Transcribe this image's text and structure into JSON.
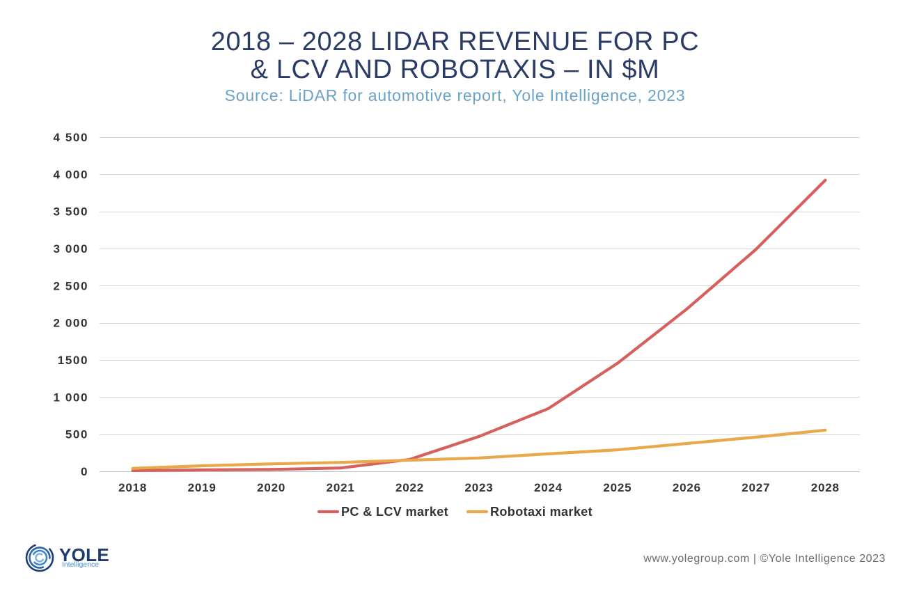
{
  "chart_data": {
    "type": "line",
    "title_lines": [
      "2018 – 2028 LIDAR REVENUE FOR PC",
      "& LCV AND ROBOTAXIS – IN $M"
    ],
    "subtitle": "Source: LiDAR for automotive report, Yole Intelligence, 2023",
    "xlabel": "",
    "ylabel": "",
    "categories": [
      "2018",
      "2019",
      "2020",
      "2021",
      "2022",
      "2023",
      "2024",
      "2025",
      "2026",
      "2027",
      "2028"
    ],
    "ylim": [
      0,
      4500
    ],
    "y_ticks": [
      0,
      500,
      1000,
      1500,
      2000,
      2500,
      3000,
      3500,
      4000,
      4500
    ],
    "y_tick_labels": [
      "0",
      "500",
      "1 000",
      "1500",
      "2 000",
      "2 500",
      "3 000",
      "3 500",
      "4 000",
      "4 500"
    ],
    "grid": true,
    "legend": "bottom",
    "series": [
      {
        "name": "PC & LCV market",
        "color": "#d6605b",
        "values": [
          10,
          20,
          25,
          45,
          160,
          470,
          845,
          1455,
          2185,
          2990,
          3920
        ]
      },
      {
        "name": "Robotaxi market",
        "color": "#e9a84c",
        "values": [
          40,
          75,
          100,
          120,
          150,
          180,
          235,
          290,
          375,
          460,
          555
        ]
      }
    ]
  },
  "branding": {
    "logo_text": "YOLE",
    "logo_subtext": "Intelligence",
    "credit": "www.yolegroup.com | ©Yole Intelligence 2023"
  },
  "colors": {
    "title": "#2a3b66",
    "subtitle": "#6aa2c8",
    "axis_text": "#333333",
    "gridline": "#d6d6d6",
    "axis_line": "#bfbfbf",
    "credit_text": "#6b6b6b",
    "logo_navy": "#1f3b6e",
    "logo_blue": "#4a90d0"
  }
}
